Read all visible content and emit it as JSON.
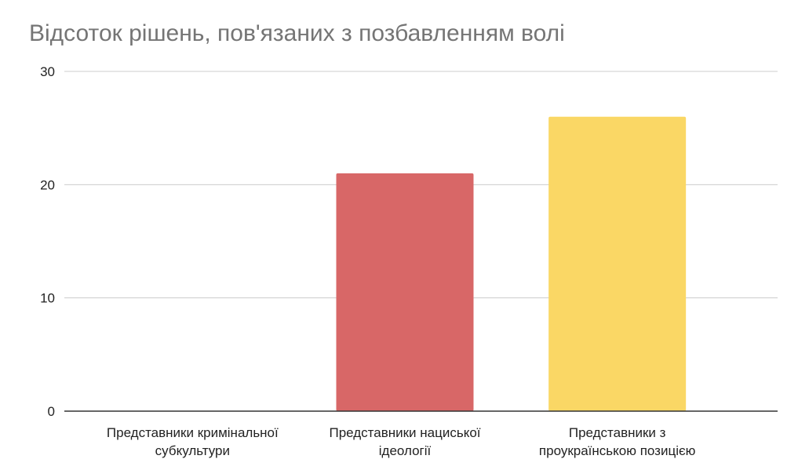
{
  "chart_data": {
    "type": "bar",
    "title": "Відсоток рішень, пов'язаних з позбавленням волі",
    "xlabel": "",
    "ylabel": "",
    "categories": [
      [
        "Представники кримінальної",
        "субкультури"
      ],
      [
        "Представники нациської",
        "ідеології"
      ],
      [
        "Представники з",
        "проукраїнською позицією"
      ]
    ],
    "values": [
      0,
      21,
      26
    ],
    "bar_colors": [
      "#4285f4",
      "#d86767",
      "#fad765"
    ],
    "ylim": [
      0,
      30
    ],
    "yticks": [
      0,
      10,
      20,
      30
    ],
    "grid": true,
    "legend": "none"
  }
}
